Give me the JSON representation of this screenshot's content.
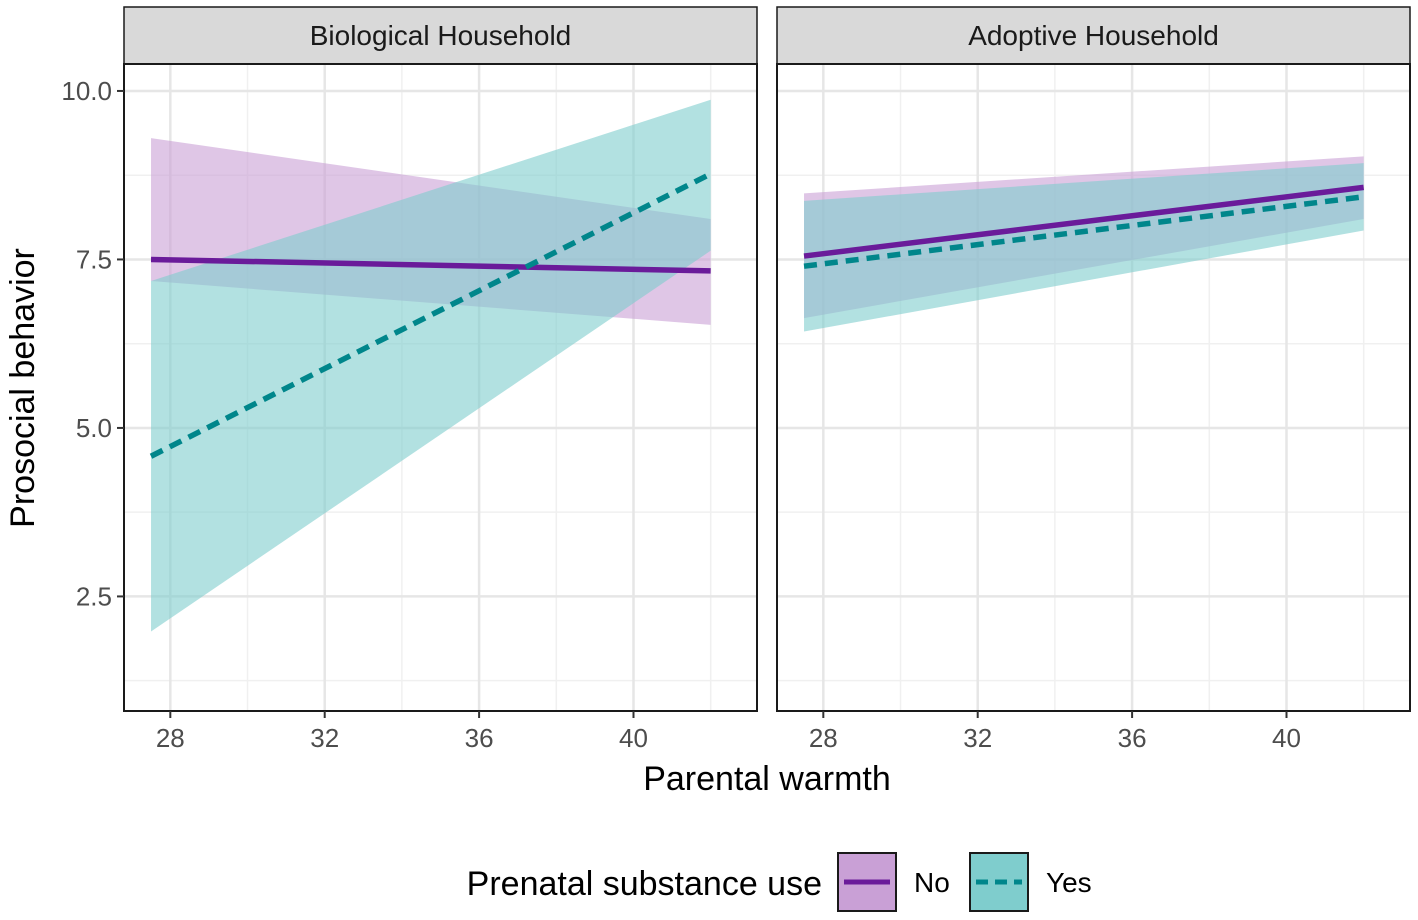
{
  "colors": {
    "no": "#6a1b9a",
    "yes": "#00868b",
    "no_fill": "#c9a0d6",
    "yes_fill": "#7fcdcd"
  },
  "chart_data": {
    "type": "line",
    "xlabel": "Parental warmth",
    "ylabel": "Prosocial behavior",
    "xlim": [
      26.8,
      43.2
    ],
    "ylim": [
      0.8,
      10.4
    ],
    "xticks": [
      28,
      32,
      36,
      40
    ],
    "yticks": [
      2.5,
      5.0,
      7.5,
      10.0
    ],
    "ytick_labels": [
      "2.5",
      "5.0",
      "7.5",
      "10.0"
    ],
    "x_minor_ticks": [
      30,
      34,
      38,
      42
    ],
    "y_minor_ticks": [
      1.25,
      3.75,
      6.25,
      8.75
    ],
    "legend": {
      "title": "Prenatal substance use",
      "position": "bottom",
      "entries": [
        {
          "key": "no",
          "label": "No"
        },
        {
          "key": "yes",
          "label": "Yes"
        }
      ]
    },
    "panels": [
      {
        "title": "Biological Household",
        "series": [
          {
            "key": "no",
            "name": "No",
            "style": "solid",
            "x": [
              27.5,
              42
            ],
            "y": [
              7.5,
              7.33
            ],
            "ci_lower": [
              7.18,
              6.53
            ],
            "ci_upper": [
              9.3,
              8.1
            ]
          },
          {
            "key": "yes",
            "name": "Yes",
            "style": "dashed",
            "x": [
              27.5,
              42
            ],
            "y": [
              4.58,
              8.77
            ],
            "ci_lower": [
              1.98,
              7.63
            ],
            "ci_upper": [
              7.18,
              9.87
            ]
          }
        ]
      },
      {
        "title": "Adoptive Household",
        "series": [
          {
            "key": "no",
            "name": "No",
            "style": "solid",
            "x": [
              27.5,
              42
            ],
            "y": [
              7.55,
              8.57
            ],
            "ci_lower": [
              6.63,
              8.1
            ],
            "ci_upper": [
              8.48,
              9.03
            ]
          },
          {
            "key": "yes",
            "name": "Yes",
            "style": "dashed",
            "x": [
              27.5,
              42
            ],
            "y": [
              7.4,
              8.43
            ],
            "ci_lower": [
              6.43,
              7.93
            ],
            "ci_upper": [
              8.37,
              8.93
            ]
          }
        ]
      }
    ]
  }
}
